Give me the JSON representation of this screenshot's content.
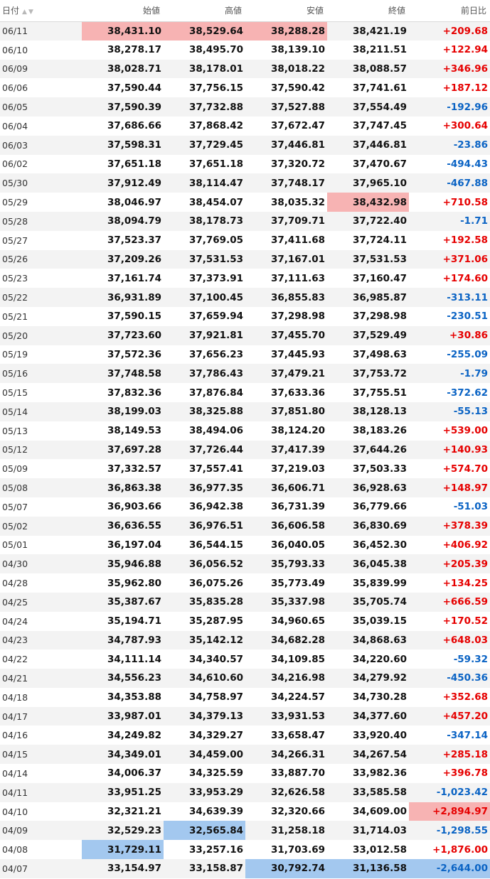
{
  "headers": {
    "date": "日付",
    "open": "始値",
    "high": "高値",
    "low": "安値",
    "close": "終値",
    "change": "前日比"
  },
  "sort": {
    "up_icon": "sort-ascending-icon",
    "down_icon": "sort-descending-icon",
    "up_glyph": "▲",
    "down_glyph": "▼"
  },
  "colors": {
    "up": "#e60000",
    "down": "#0a63c4",
    "highlight_red": "#f7b3b3",
    "highlight_blue": "#a3c8ef"
  },
  "rows": [
    {
      "date": "06/11",
      "open": "38,431.10",
      "high": "38,529.64",
      "low": "38,288.28",
      "close": "38,421.19",
      "change": "+209.68",
      "dir": "up",
      "hl": {
        "open": "red",
        "high": "red",
        "low": "red"
      }
    },
    {
      "date": "06/10",
      "open": "38,278.17",
      "high": "38,495.70",
      "low": "38,139.10",
      "close": "38,211.51",
      "change": "+122.94",
      "dir": "up"
    },
    {
      "date": "06/09",
      "open": "38,028.71",
      "high": "38,178.01",
      "low": "38,018.22",
      "close": "38,088.57",
      "change": "+346.96",
      "dir": "up"
    },
    {
      "date": "06/06",
      "open": "37,590.44",
      "high": "37,756.15",
      "low": "37,590.42",
      "close": "37,741.61",
      "change": "+187.12",
      "dir": "up"
    },
    {
      "date": "06/05",
      "open": "37,590.39",
      "high": "37,732.88",
      "low": "37,527.88",
      "close": "37,554.49",
      "change": "-192.96",
      "dir": "down"
    },
    {
      "date": "06/04",
      "open": "37,686.66",
      "high": "37,868.42",
      "low": "37,672.47",
      "close": "37,747.45",
      "change": "+300.64",
      "dir": "up"
    },
    {
      "date": "06/03",
      "open": "37,598.31",
      "high": "37,729.45",
      "low": "37,446.81",
      "close": "37,446.81",
      "change": "-23.86",
      "dir": "down"
    },
    {
      "date": "06/02",
      "open": "37,651.18",
      "high": "37,651.18",
      "low": "37,320.72",
      "close": "37,470.67",
      "change": "-494.43",
      "dir": "down"
    },
    {
      "date": "05/30",
      "open": "37,912.49",
      "high": "38,114.47",
      "low": "37,748.17",
      "close": "37,965.10",
      "change": "-467.88",
      "dir": "down"
    },
    {
      "date": "05/29",
      "open": "38,046.97",
      "high": "38,454.07",
      "low": "38,035.32",
      "close": "38,432.98",
      "change": "+710.58",
      "dir": "up",
      "hl": {
        "close": "red"
      }
    },
    {
      "date": "05/28",
      "open": "38,094.79",
      "high": "38,178.73",
      "low": "37,709.71",
      "close": "37,722.40",
      "change": "-1.71",
      "dir": "down"
    },
    {
      "date": "05/27",
      "open": "37,523.37",
      "high": "37,769.05",
      "low": "37,411.68",
      "close": "37,724.11",
      "change": "+192.58",
      "dir": "up"
    },
    {
      "date": "05/26",
      "open": "37,209.26",
      "high": "37,531.53",
      "low": "37,167.01",
      "close": "37,531.53",
      "change": "+371.06",
      "dir": "up"
    },
    {
      "date": "05/23",
      "open": "37,161.74",
      "high": "37,373.91",
      "low": "37,111.63",
      "close": "37,160.47",
      "change": "+174.60",
      "dir": "up"
    },
    {
      "date": "05/22",
      "open": "36,931.89",
      "high": "37,100.45",
      "low": "36,855.83",
      "close": "36,985.87",
      "change": "-313.11",
      "dir": "down"
    },
    {
      "date": "05/21",
      "open": "37,590.15",
      "high": "37,659.94",
      "low": "37,298.98",
      "close": "37,298.98",
      "change": "-230.51",
      "dir": "down"
    },
    {
      "date": "05/20",
      "open": "37,723.60",
      "high": "37,921.81",
      "low": "37,455.70",
      "close": "37,529.49",
      "change": "+30.86",
      "dir": "up"
    },
    {
      "date": "05/19",
      "open": "37,572.36",
      "high": "37,656.23",
      "low": "37,445.93",
      "close": "37,498.63",
      "change": "-255.09",
      "dir": "down"
    },
    {
      "date": "05/16",
      "open": "37,748.58",
      "high": "37,786.43",
      "low": "37,479.21",
      "close": "37,753.72",
      "change": "-1.79",
      "dir": "down"
    },
    {
      "date": "05/15",
      "open": "37,832.36",
      "high": "37,876.84",
      "low": "37,633.36",
      "close": "37,755.51",
      "change": "-372.62",
      "dir": "down"
    },
    {
      "date": "05/14",
      "open": "38,199.03",
      "high": "38,325.88",
      "low": "37,851.80",
      "close": "38,128.13",
      "change": "-55.13",
      "dir": "down"
    },
    {
      "date": "05/13",
      "open": "38,149.53",
      "high": "38,494.06",
      "low": "38,124.20",
      "close": "38,183.26",
      "change": "+539.00",
      "dir": "up"
    },
    {
      "date": "05/12",
      "open": "37,697.28",
      "high": "37,726.44",
      "low": "37,417.39",
      "close": "37,644.26",
      "change": "+140.93",
      "dir": "up"
    },
    {
      "date": "05/09",
      "open": "37,332.57",
      "high": "37,557.41",
      "low": "37,219.03",
      "close": "37,503.33",
      "change": "+574.70",
      "dir": "up"
    },
    {
      "date": "05/08",
      "open": "36,863.38",
      "high": "36,977.35",
      "low": "36,606.71",
      "close": "36,928.63",
      "change": "+148.97",
      "dir": "up"
    },
    {
      "date": "05/07",
      "open": "36,903.66",
      "high": "36,942.38",
      "low": "36,731.39",
      "close": "36,779.66",
      "change": "-51.03",
      "dir": "down"
    },
    {
      "date": "05/02",
      "open": "36,636.55",
      "high": "36,976.51",
      "low": "36,606.58",
      "close": "36,830.69",
      "change": "+378.39",
      "dir": "up"
    },
    {
      "date": "05/01",
      "open": "36,197.04",
      "high": "36,544.15",
      "low": "36,040.05",
      "close": "36,452.30",
      "change": "+406.92",
      "dir": "up"
    },
    {
      "date": "04/30",
      "open": "35,946.88",
      "high": "36,056.52",
      "low": "35,793.33",
      "close": "36,045.38",
      "change": "+205.39",
      "dir": "up"
    },
    {
      "date": "04/28",
      "open": "35,962.80",
      "high": "36,075.26",
      "low": "35,773.49",
      "close": "35,839.99",
      "change": "+134.25",
      "dir": "up"
    },
    {
      "date": "04/25",
      "open": "35,387.67",
      "high": "35,835.28",
      "low": "35,337.98",
      "close": "35,705.74",
      "change": "+666.59",
      "dir": "up"
    },
    {
      "date": "04/24",
      "open": "35,194.71",
      "high": "35,287.95",
      "low": "34,960.65",
      "close": "35,039.15",
      "change": "+170.52",
      "dir": "up"
    },
    {
      "date": "04/23",
      "open": "34,787.93",
      "high": "35,142.12",
      "low": "34,682.28",
      "close": "34,868.63",
      "change": "+648.03",
      "dir": "up"
    },
    {
      "date": "04/22",
      "open": "34,111.14",
      "high": "34,340.57",
      "low": "34,109.85",
      "close": "34,220.60",
      "change": "-59.32",
      "dir": "down"
    },
    {
      "date": "04/21",
      "open": "34,556.23",
      "high": "34,610.60",
      "low": "34,216.98",
      "close": "34,279.92",
      "change": "-450.36",
      "dir": "down"
    },
    {
      "date": "04/18",
      "open": "34,353.88",
      "high": "34,758.97",
      "low": "34,224.57",
      "close": "34,730.28",
      "change": "+352.68",
      "dir": "up"
    },
    {
      "date": "04/17",
      "open": "33,987.01",
      "high": "34,379.13",
      "low": "33,931.53",
      "close": "34,377.60",
      "change": "+457.20",
      "dir": "up"
    },
    {
      "date": "04/16",
      "open": "34,249.82",
      "high": "34,329.27",
      "low": "33,658.47",
      "close": "33,920.40",
      "change": "-347.14",
      "dir": "down"
    },
    {
      "date": "04/15",
      "open": "34,349.01",
      "high": "34,459.00",
      "low": "34,266.31",
      "close": "34,267.54",
      "change": "+285.18",
      "dir": "up"
    },
    {
      "date": "04/14",
      "open": "34,006.37",
      "high": "34,325.59",
      "low": "33,887.70",
      "close": "33,982.36",
      "change": "+396.78",
      "dir": "up"
    },
    {
      "date": "04/11",
      "open": "33,951.25",
      "high": "33,953.29",
      "low": "32,626.58",
      "close": "33,585.58",
      "change": "-1,023.42",
      "dir": "down"
    },
    {
      "date": "04/10",
      "open": "32,321.21",
      "high": "34,639.39",
      "low": "32,320.66",
      "close": "34,609.00",
      "change": "+2,894.97",
      "dir": "up",
      "hl": {
        "change": "red"
      }
    },
    {
      "date": "04/09",
      "open": "32,529.23",
      "high": "32,565.84",
      "low": "31,258.18",
      "close": "31,714.03",
      "change": "-1,298.55",
      "dir": "down",
      "hl": {
        "high": "blue"
      }
    },
    {
      "date": "04/08",
      "open": "31,729.11",
      "high": "33,257.16",
      "low": "31,703.69",
      "close": "33,012.58",
      "change": "+1,876.00",
      "dir": "up",
      "hl": {
        "open": "blue"
      }
    },
    {
      "date": "04/07",
      "open": "33,154.97",
      "high": "33,158.87",
      "low": "30,792.74",
      "close": "31,136.58",
      "change": "-2,644.00",
      "dir": "down",
      "hl": {
        "low": "blue",
        "close": "blue",
        "change": "blue"
      }
    }
  ]
}
